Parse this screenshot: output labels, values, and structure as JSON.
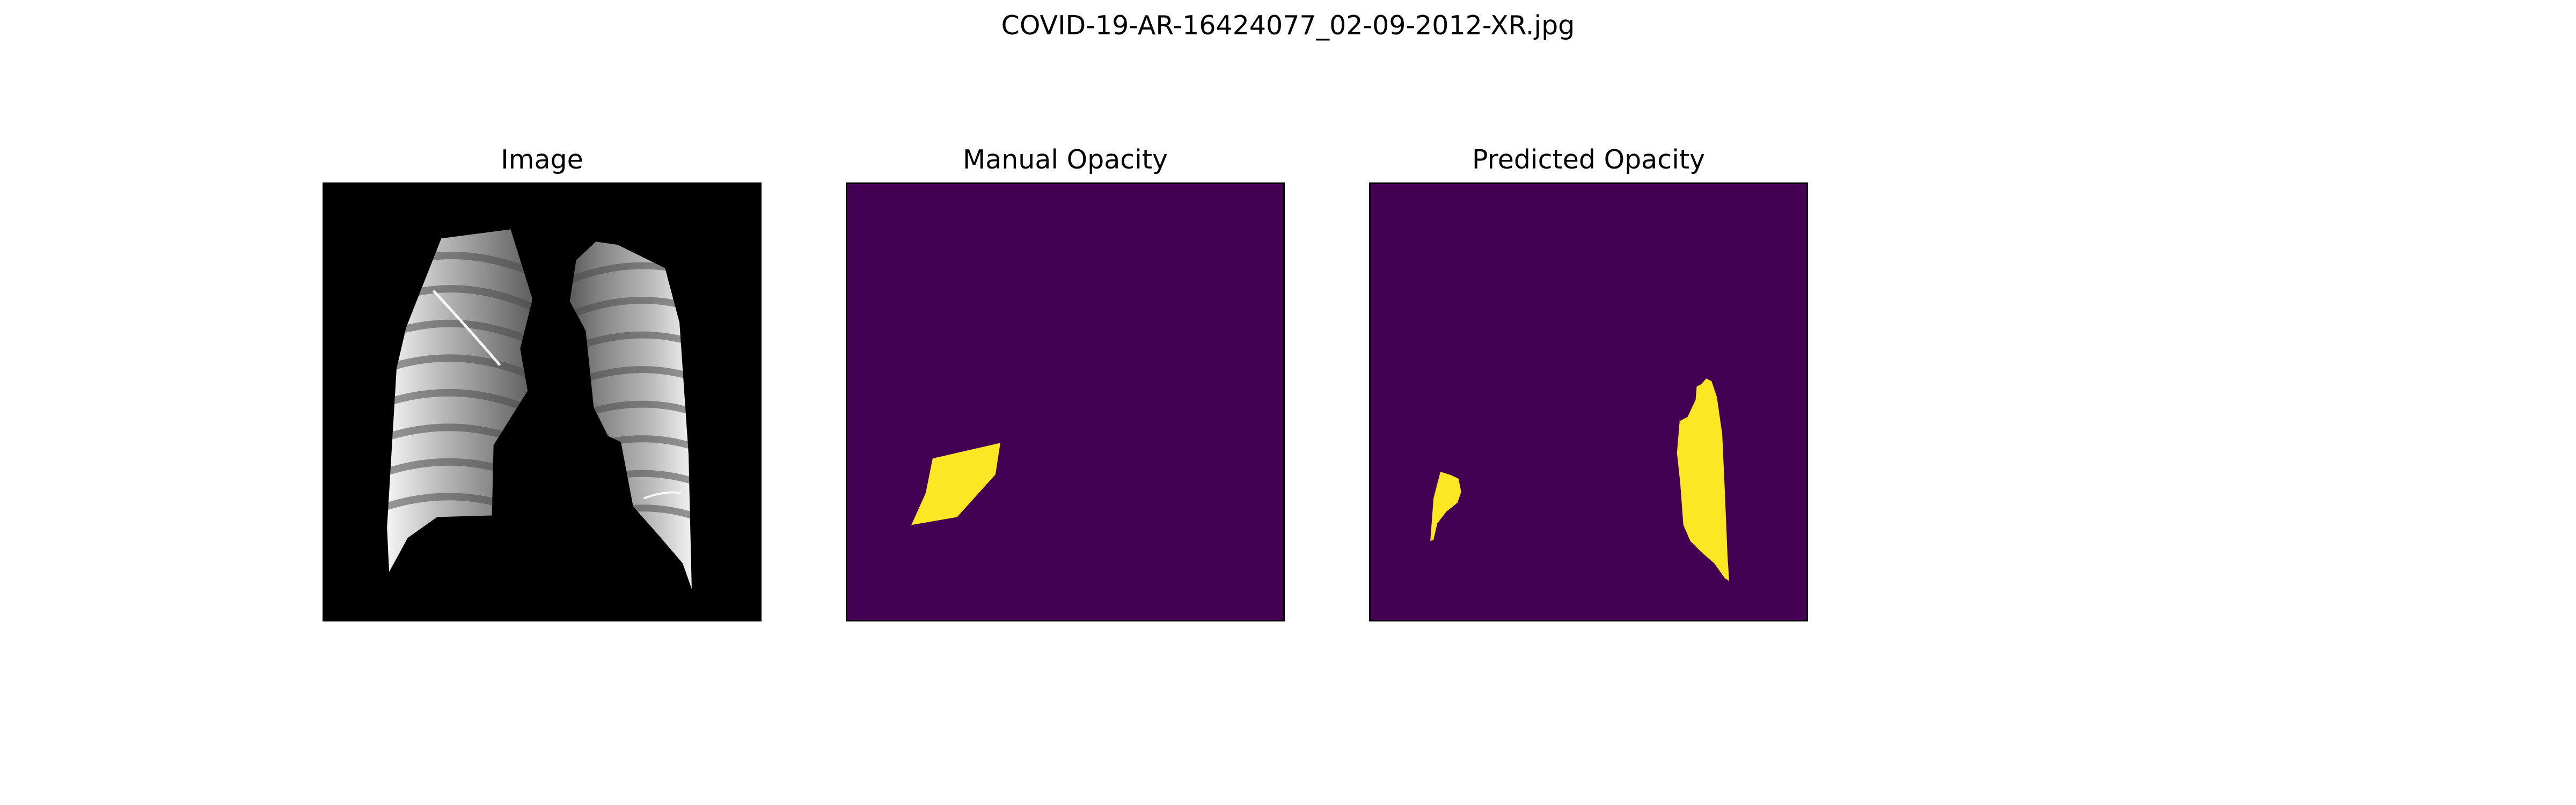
{
  "figure": {
    "title": "COVID-19-AR-16424077_02-09-2012-XR.jpg"
  },
  "panels": [
    {
      "title": "Image",
      "content": "chest-xray"
    },
    {
      "title": "Manual Opacity",
      "content": "segmentation-mask"
    },
    {
      "title": "Predicted Opacity",
      "content": "segmentation-mask"
    }
  ],
  "colors": {
    "mask_background": "#440154",
    "mask_foreground": "#fde725",
    "xray_background": "#000000"
  }
}
